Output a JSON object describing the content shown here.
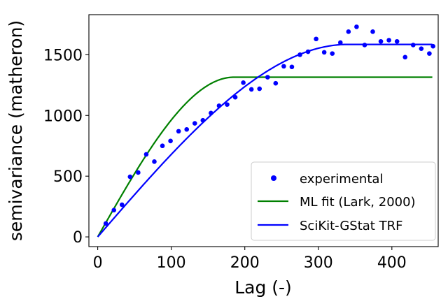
{
  "chart_data": {
    "type": "scatter",
    "xlabel": "Lag (-)",
    "ylabel": "semivariance (matheron)",
    "xlim": [
      -12,
      463
    ],
    "ylim": [
      -80,
      1830
    ],
    "xticks": [
      0,
      100,
      200,
      300,
      400
    ],
    "yticks": [
      0,
      500,
      1000,
      1500
    ],
    "grid": false,
    "legend_position": "lower-right",
    "series": [
      {
        "name": "experimental",
        "kind": "markers",
        "color": "#0000ff",
        "x": [
          11,
          22,
          33,
          44,
          55,
          66,
          77,
          88,
          99,
          110,
          121,
          132,
          143,
          154,
          165,
          176,
          187,
          198,
          209,
          220,
          231,
          242,
          253,
          264,
          275,
          286,
          297,
          308,
          319,
          330,
          341,
          352,
          363,
          374,
          385,
          396,
          407,
          418,
          429,
          440,
          451,
          456
        ],
        "y": [
          110,
          220,
          265,
          495,
          530,
          680,
          620,
          750,
          790,
          870,
          885,
          935,
          960,
          1020,
          1080,
          1090,
          1150,
          1270,
          1215,
          1220,
          1315,
          1265,
          1405,
          1400,
          1500,
          1525,
          1630,
          1520,
          1510,
          1600,
          1690,
          1730,
          1580,
          1690,
          1610,
          1620,
          1610,
          1480,
          1580,
          1550,
          1510,
          1570
        ]
      },
      {
        "name": "ML fit (Lark, 2000)",
        "kind": "line",
        "model": "spherical",
        "range": 185,
        "sill": 1315,
        "color": "#008000",
        "x_max": 455
      },
      {
        "name": "SciKit-GStat TRF",
        "kind": "line",
        "model": "spherical",
        "range": 340,
        "sill": 1585,
        "color": "#0000ff",
        "x_max": 455
      }
    ]
  }
}
